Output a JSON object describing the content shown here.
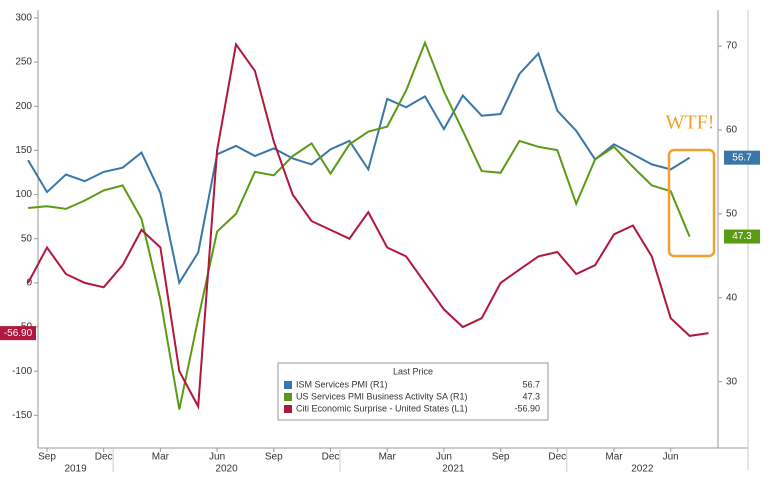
{
  "chart_data": {
    "type": "line",
    "categories": [
      null,
      "Sep",
      null,
      null,
      "Dec",
      null,
      null,
      "Mar",
      null,
      null,
      "Jun",
      null,
      null,
      "Sep",
      null,
      null,
      "Dec",
      null,
      null,
      "Mar",
      null,
      null,
      "Jun",
      null,
      null,
      "Sep",
      null,
      null,
      "Dec",
      null,
      null,
      "Mar",
      null,
      null,
      "Jun",
      null,
      null
    ],
    "years": [
      "2019",
      "2020",
      "2021",
      "2022"
    ],
    "series": [
      {
        "name": "ISM Services PMI (R1)",
        "color": "#3a77a8",
        "axis": "y2",
        "values": [
          56.4,
          52.6,
          54.7,
          53.9,
          55.0,
          55.5,
          57.3,
          52.5,
          41.8,
          45.4,
          57.1,
          58.1,
          56.9,
          57.8,
          56.6,
          55.9,
          57.7,
          58.7,
          55.3,
          63.7,
          62.7,
          64.0,
          60.1,
          64.1,
          61.7,
          61.9,
          66.7,
          69.1,
          62.3,
          59.9,
          56.5,
          58.3,
          57.1,
          55.9,
          55.3,
          56.7,
          null
        ],
        "value_labels": [
          null,
          null,
          null,
          null,
          null,
          null,
          null,
          null,
          null,
          null,
          null,
          null,
          null,
          null,
          null,
          null,
          null,
          null,
          null,
          null,
          null,
          null,
          null,
          null,
          null,
          null,
          null,
          null,
          null,
          null,
          null,
          null,
          null,
          null,
          null,
          "56.7",
          null
        ]
      },
      {
        "name": "US Services PMI Business Activity SA (R1)",
        "color": "#5b9a14",
        "axis": "y2",
        "values": [
          50.7,
          50.9,
          50.6,
          51.6,
          52.8,
          53.4,
          49.4,
          39.8,
          26.7,
          37.5,
          47.9,
          50.0,
          55.0,
          54.6,
          56.9,
          58.4,
          54.8,
          58.3,
          59.8,
          60.4,
          64.7,
          70.4,
          64.6,
          59.9,
          55.1,
          54.9,
          58.7,
          58.0,
          57.6,
          51.2,
          56.5,
          58.0,
          55.6,
          53.4,
          52.7,
          47.3,
          null
        ],
        "value_labels": [
          null,
          null,
          null,
          null,
          null,
          null,
          null,
          null,
          null,
          null,
          null,
          null,
          null,
          null,
          null,
          null,
          null,
          null,
          null,
          null,
          null,
          null,
          null,
          null,
          null,
          null,
          null,
          null,
          null,
          null,
          null,
          null,
          null,
          null,
          null,
          "47.3",
          null
        ]
      },
      {
        "name": "Citi Economic Surprise - United States (L1)",
        "color": "#b0183d",
        "axis": "y",
        "values": [
          0,
          40,
          10,
          0,
          -5,
          20,
          60,
          40,
          -100,
          -140,
          150,
          270,
          240,
          160,
          100,
          70,
          60,
          50,
          80,
          40,
          30,
          0,
          -30,
          -50,
          -40,
          0,
          15,
          30,
          35,
          10,
          20,
          55,
          65,
          30,
          -40,
          -60,
          -56.9
        ],
        "value_labels": [
          null,
          null,
          null,
          null,
          null,
          null,
          null,
          null,
          null,
          null,
          null,
          null,
          null,
          null,
          null,
          null,
          null,
          null,
          null,
          null,
          null,
          null,
          null,
          null,
          null,
          null,
          null,
          null,
          null,
          null,
          null,
          null,
          null,
          null,
          null,
          null,
          "-56.90"
        ]
      }
    ],
    "legend_title": "Last Price",
    "annotation": "WTF!",
    "ylim": [
      -187,
      309
    ],
    "yticks": [
      -150,
      -100,
      -50,
      0,
      50,
      100,
      150,
      200,
      250,
      300
    ],
    "y2lim": [
      22.1,
      74.3
    ],
    "y2ticks": [
      30,
      40,
      50,
      60,
      70
    ]
  }
}
